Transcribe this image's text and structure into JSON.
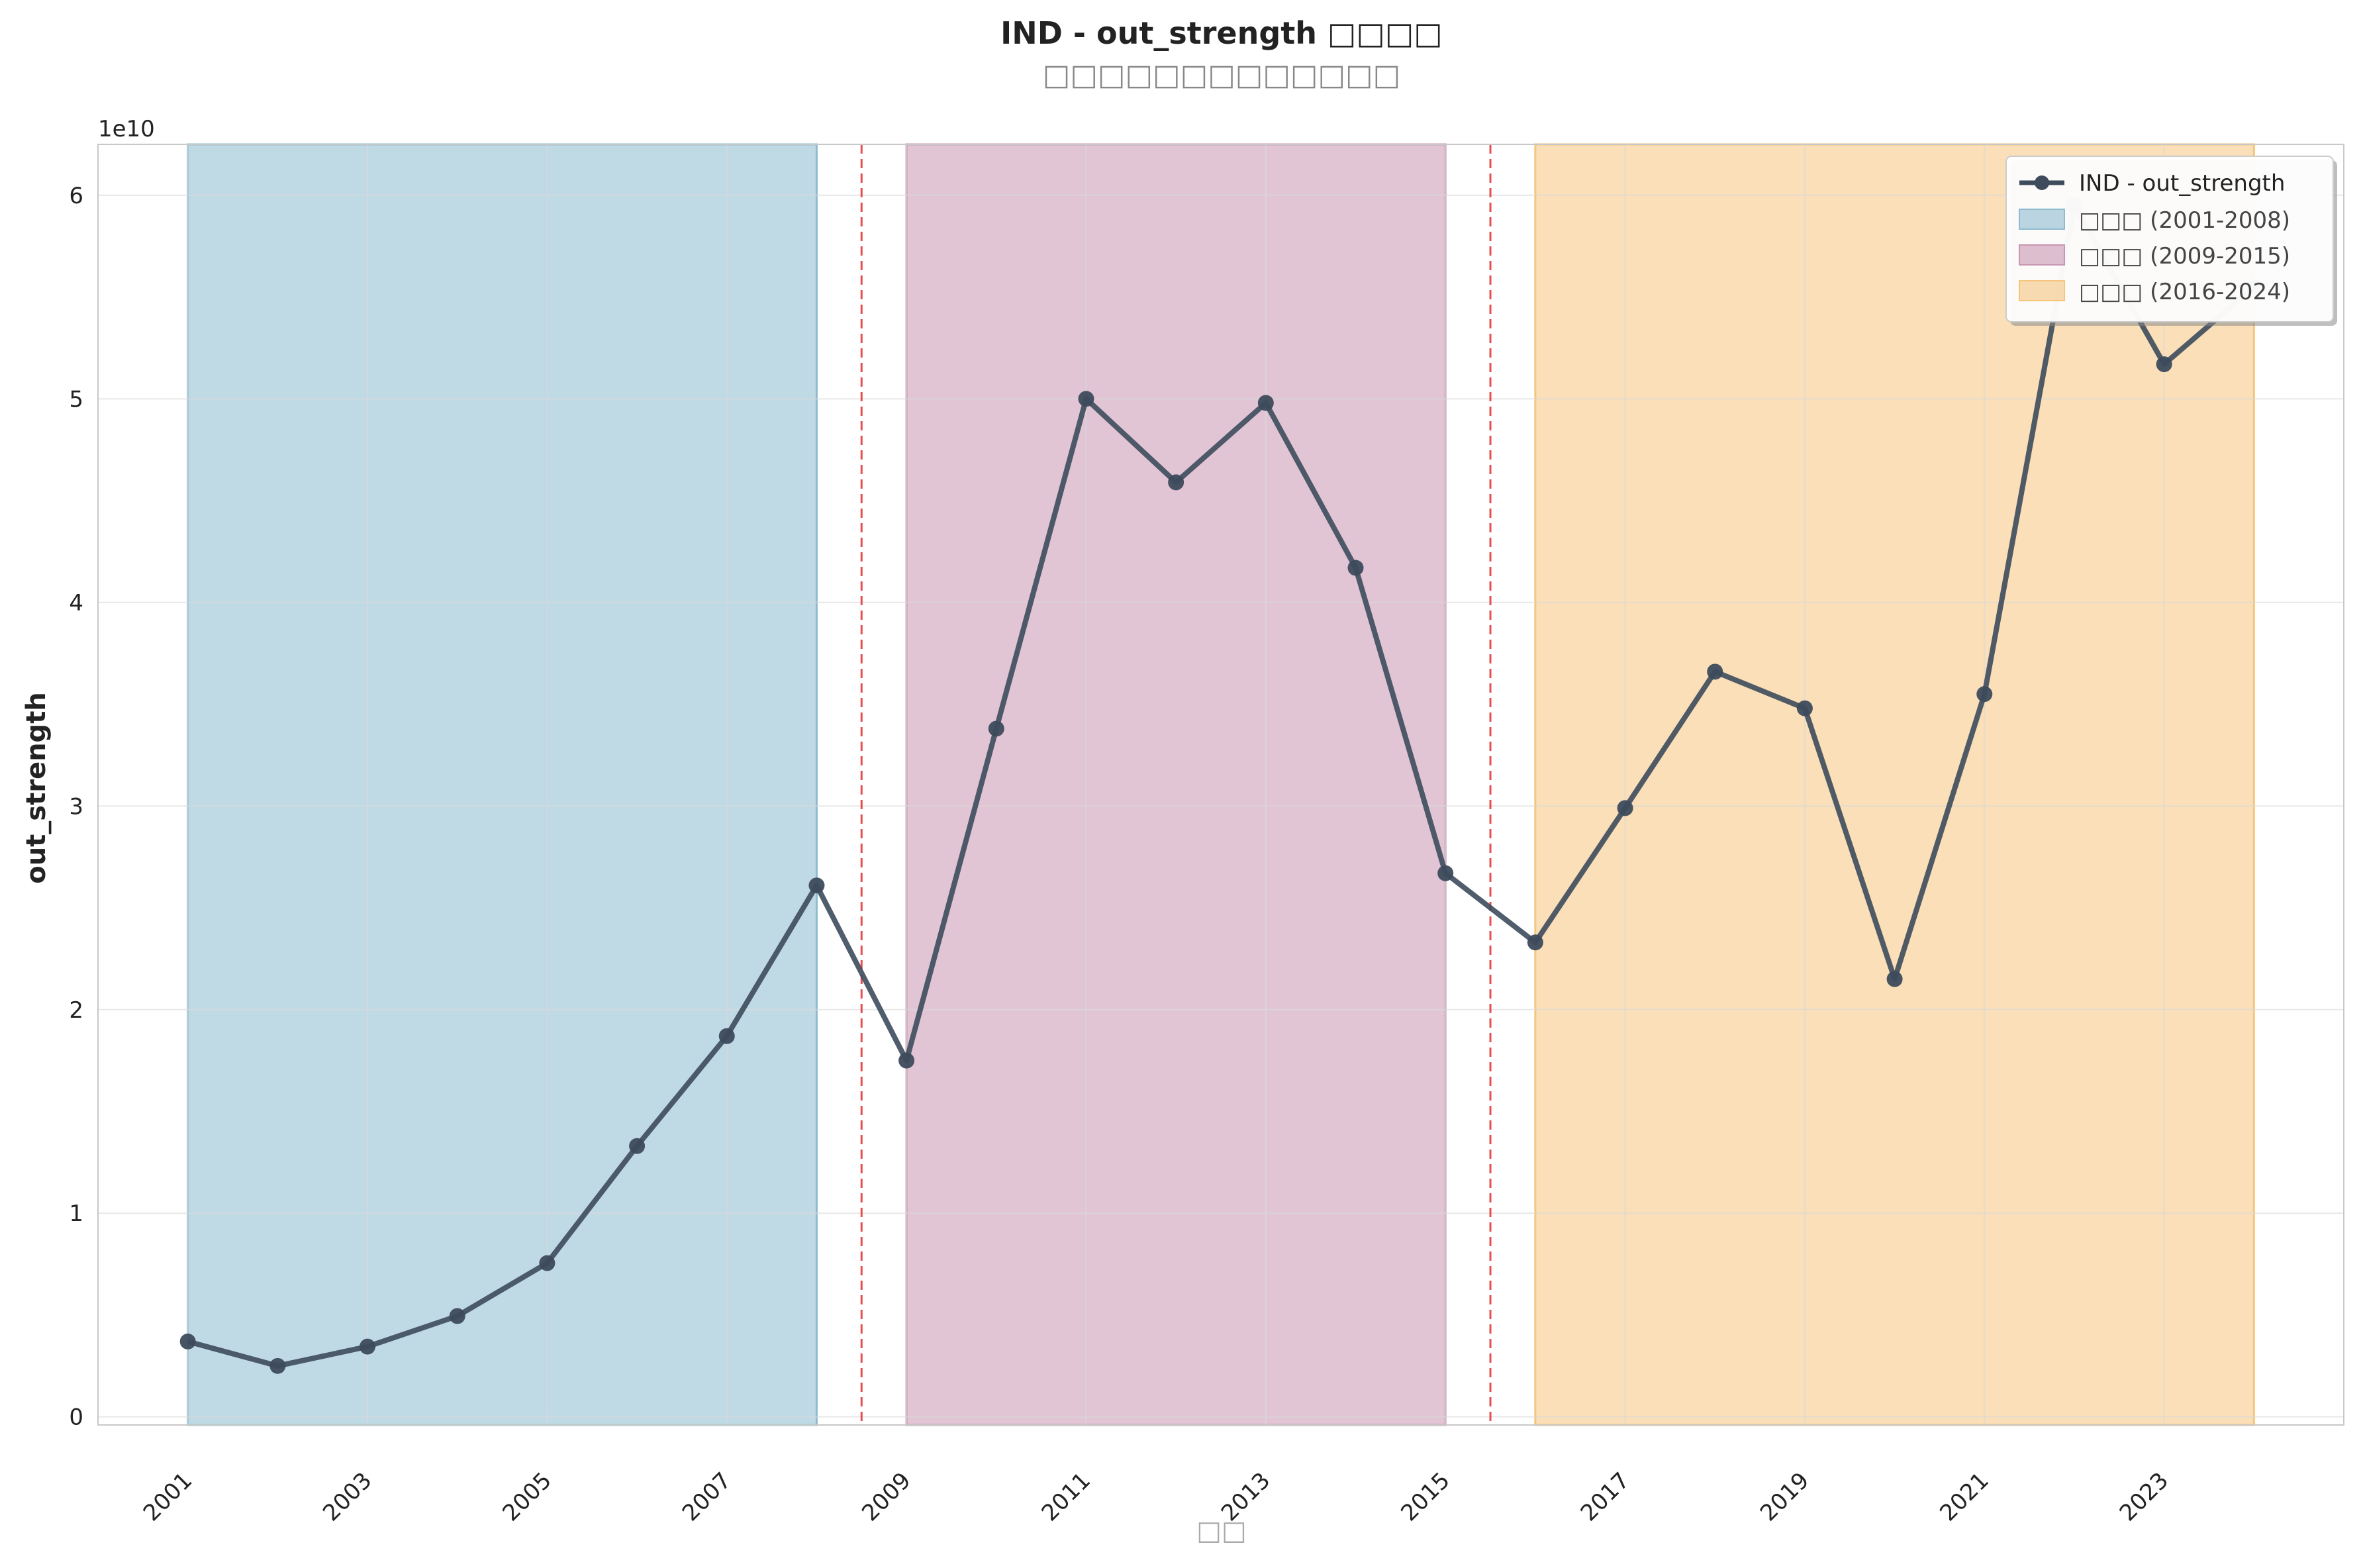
{
  "chart_data": {
    "type": "line",
    "title": "IND - out_strength □□□□",
    "subtitle": "□□□□□□□□□□□□□",
    "xlabel": "□□",
    "ylabel": "out_strength",
    "y_offset_label": "1e10",
    "x": [
      2001,
      2002,
      2003,
      2004,
      2005,
      2006,
      2007,
      2008,
      2009,
      2010,
      2011,
      2012,
      2013,
      2014,
      2015,
      2016,
      2017,
      2018,
      2019,
      2020,
      2021,
      2022,
      2023,
      2024
    ],
    "series": [
      {
        "name": "IND - out_strength",
        "color": "#3d4b5c",
        "values": [
          3700000000,
          2500000000,
          3450000000,
          4950000000,
          7550000000,
          13300000000,
          18700000000,
          26100000000,
          17500000000,
          33800000000,
          50000000000,
          45900000000,
          49800000000,
          41700000000,
          26700000000,
          23300000000,
          29900000000,
          36600000000,
          34800000000,
          21500000000,
          35500000000,
          59500000000,
          51700000000,
          55500000000
        ]
      }
    ],
    "periods": [
      {
        "label": "□□□ (2001-2008)",
        "start": 2001,
        "end": 2008,
        "color": "#8dbcd0"
      },
      {
        "label": "□□□ (2009-2015)",
        "start": 2009,
        "end": 2015,
        "color": "#c896b2"
      },
      {
        "label": "□□□ (2016-2024)",
        "start": 2016,
        "end": 2024,
        "color": "#f5c57e"
      }
    ],
    "breakpoints": [
      2008.5,
      2015.5
    ],
    "breakpoint_color": "#e03030",
    "xlim": [
      2000,
      2025
    ],
    "ylim": [
      -400000000,
      62500000000
    ],
    "yticks": [
      0,
      10000000000,
      20000000000,
      30000000000,
      40000000000,
      50000000000,
      60000000000
    ],
    "ytick_labels": [
      "0",
      "1",
      "2",
      "3",
      "4",
      "5",
      "6"
    ],
    "xticks": [
      2001,
      2003,
      2005,
      2007,
      2009,
      2011,
      2013,
      2015,
      2017,
      2019,
      2021,
      2023
    ],
    "grid": true,
    "legend_position": "top-right"
  }
}
